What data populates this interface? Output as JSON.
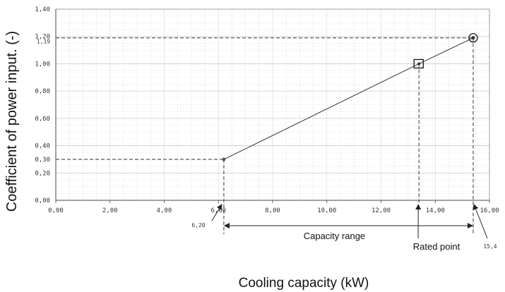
{
  "chart_data": {
    "type": "line",
    "xlabel": "Cooling capacity (kW)",
    "ylabel": "Coefficient of power input. (-)",
    "xlim": [
      0,
      16
    ],
    "ylim": [
      0,
      1.4
    ],
    "grid": true,
    "x_ticks": [
      "0,00",
      "2,00",
      "4,00",
      "6,00",
      "8,00",
      "10,00",
      "12,00",
      "14,00",
      "16,00"
    ],
    "y_ticks": [
      "0,00",
      "0,20",
      "0,30",
      "0,40",
      "0,60",
      "0,80",
      "1,00",
      "1,19",
      "1,20",
      "1,40"
    ],
    "series": [
      {
        "x": [
          6.2,
          13.4,
          15.4
        ],
        "y": [
          0.3,
          1.0,
          1.19
        ]
      }
    ],
    "markers": [
      {
        "x": 6.2,
        "y": 0.3,
        "style": "dot"
      },
      {
        "x": 13.4,
        "y": 1.0,
        "style": "square"
      },
      {
        "x": 15.4,
        "y": 1.19,
        "style": "circle"
      }
    ],
    "annotations": {
      "min_x_label": "6,20",
      "max_x_label": "15,4",
      "range_label": "Capacity range",
      "rated_label": "Rated point"
    }
  }
}
